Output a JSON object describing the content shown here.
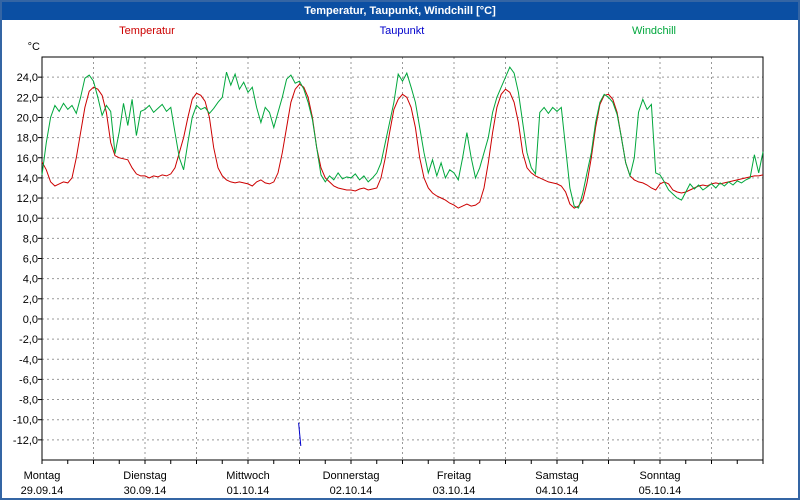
{
  "title_bar": {
    "title": "Temperatur, Taupunkt, Windchill [°C]"
  },
  "legend": {
    "items": [
      {
        "label": "Temperatur",
        "color": "#cc0000"
      },
      {
        "label": "Taupunkt",
        "color": "#0000cc"
      },
      {
        "label": "Windchill",
        "color": "#00a73c"
      }
    ]
  },
  "chart_data": {
    "type": "line",
    "title": "Temperatur, Taupunkt, Windchill [°C]",
    "ylabel": "°C",
    "ylim": [
      -14,
      26
    ],
    "ytick_start": -12,
    "ytick_end": 24,
    "ytick_step": 2,
    "x_range_hours": [
      0,
      168
    ],
    "grid": "dashed",
    "x_labels": [
      {
        "day": "Montag",
        "date": "29.09.14"
      },
      {
        "day": "Dienstag",
        "date": "30.09.14"
      },
      {
        "day": "Mittwoch",
        "date": "01.10.14"
      },
      {
        "day": "Donnerstag",
        "date": "02.10.14"
      },
      {
        "day": "Freitag",
        "date": "03.10.14"
      },
      {
        "day": "Samstag",
        "date": "04.10.14"
      },
      {
        "day": "Sonntag",
        "date": "05.10.14"
      }
    ],
    "series": [
      {
        "name": "Temperatur",
        "color": "#cc0000",
        "hours_start": 0,
        "step": 1,
        "values": [
          15.6,
          14.8,
          13.6,
          13.2,
          13.4,
          13.6,
          13.5,
          14.0,
          16.0,
          18.5,
          21.0,
          22.6,
          23.0,
          22.8,
          22.2,
          20.5,
          17.5,
          16.2,
          16.0,
          15.9,
          15.8,
          15.0,
          14.4,
          14.2,
          14.2,
          14.0,
          14.2,
          14.1,
          14.3,
          14.2,
          14.4,
          15.0,
          16.5,
          18.0,
          20.0,
          21.8,
          22.4,
          22.2,
          21.6,
          20.0,
          17.0,
          15.0,
          14.2,
          13.8,
          13.6,
          13.5,
          13.6,
          13.5,
          13.4,
          13.2,
          13.6,
          13.8,
          13.5,
          13.4,
          13.6,
          14.5,
          16.5,
          19.0,
          21.5,
          22.8,
          23.3,
          23.0,
          22.0,
          20.0,
          17.0,
          15.0,
          14.0,
          13.6,
          13.2,
          13.0,
          12.9,
          12.8,
          12.8,
          12.7,
          12.9,
          13.0,
          12.8,
          12.9,
          13.0,
          14.0,
          16.0,
          18.5,
          20.8,
          21.8,
          22.3,
          22.0,
          21.0,
          19.0,
          16.0,
          14.0,
          13.0,
          12.5,
          12.2,
          12.0,
          11.8,
          11.5,
          11.3,
          11.0,
          11.2,
          11.4,
          11.2,
          11.3,
          11.6,
          13.0,
          15.5,
          18.5,
          21.0,
          22.3,
          22.8,
          22.5,
          21.5,
          19.5,
          16.5,
          15.0,
          14.5,
          14.2,
          14.0,
          13.8,
          13.6,
          13.5,
          13.4,
          13.2,
          12.6,
          11.4,
          11.0,
          11.2,
          11.8,
          13.5,
          16.0,
          19.0,
          21.3,
          22.2,
          22.3,
          21.8,
          20.5,
          18.0,
          15.5,
          14.2,
          13.8,
          13.6,
          13.5,
          13.3,
          13.0,
          12.8,
          13.4,
          13.6,
          13.4,
          12.8,
          12.6,
          12.5,
          12.6,
          12.8,
          13.0,
          13.2,
          13.3,
          13.2,
          13.4,
          13.5,
          13.4,
          13.5,
          13.6,
          13.7,
          13.8,
          13.9,
          14.0,
          14.1,
          14.2,
          14.2,
          14.3
        ]
      },
      {
        "name": "Taupunkt",
        "color": "#0000cc",
        "points": [
          [
            59.8,
            -10.3
          ],
          [
            60.3,
            -12.6
          ]
        ]
      },
      {
        "name": "Windchill",
        "color": "#00a73c",
        "hours_start": 0,
        "step": 1,
        "values": [
          14.3,
          17.5,
          20.0,
          21.2,
          20.6,
          21.4,
          20.8,
          21.2,
          20.4,
          22.0,
          23.9,
          24.2,
          23.6,
          22.0,
          20.2,
          21.2,
          20.6,
          16.4,
          18.6,
          21.4,
          19.2,
          21.8,
          18.2,
          20.6,
          20.8,
          21.2,
          20.5,
          20.9,
          21.3,
          20.6,
          21.0,
          18.5,
          16.0,
          14.8,
          17.5,
          20.0,
          21.2,
          20.8,
          21.0,
          20.4,
          20.9,
          21.5,
          22.0,
          24.5,
          23.2,
          24.3,
          22.8,
          23.5,
          22.5,
          23.0,
          21.0,
          19.5,
          21.0,
          20.5,
          19.0,
          20.5,
          22.0,
          23.8,
          24.2,
          23.4,
          23.6,
          22.8,
          21.5,
          19.8,
          17.0,
          14.3,
          13.6,
          14.2,
          13.8,
          14.5,
          13.9,
          14.1,
          14.0,
          14.4,
          13.8,
          14.2,
          13.6,
          14.0,
          14.5,
          15.5,
          17.5,
          19.5,
          21.5,
          24.3,
          23.6,
          24.4,
          23.0,
          21.5,
          19.0,
          16.5,
          14.5,
          15.8,
          14.2,
          15.5,
          14.0,
          14.8,
          14.5,
          13.8,
          16.0,
          18.5,
          16.0,
          14.0,
          15.0,
          16.5,
          18.0,
          20.5,
          22.0,
          23.0,
          24.0,
          25.0,
          24.4,
          22.5,
          19.5,
          16.5,
          15.0,
          14.4,
          20.5,
          21.0,
          20.4,
          21.0,
          20.6,
          21.0,
          17.0,
          13.0,
          11.2,
          11.0,
          12.5,
          14.5,
          16.5,
          19.5,
          21.5,
          22.3,
          22.0,
          21.5,
          20.3,
          18.0,
          15.5,
          14.2,
          16.0,
          20.5,
          21.8,
          20.8,
          21.3,
          14.5,
          14.3,
          13.6,
          12.8,
          12.4,
          12.0,
          11.8,
          12.6,
          13.4,
          12.9,
          13.3,
          12.8,
          13.1,
          13.4,
          13.0,
          13.5,
          13.2,
          13.6,
          13.3,
          13.7,
          13.5,
          13.8,
          14.0,
          16.3,
          14.5,
          16.6
        ]
      }
    ]
  }
}
